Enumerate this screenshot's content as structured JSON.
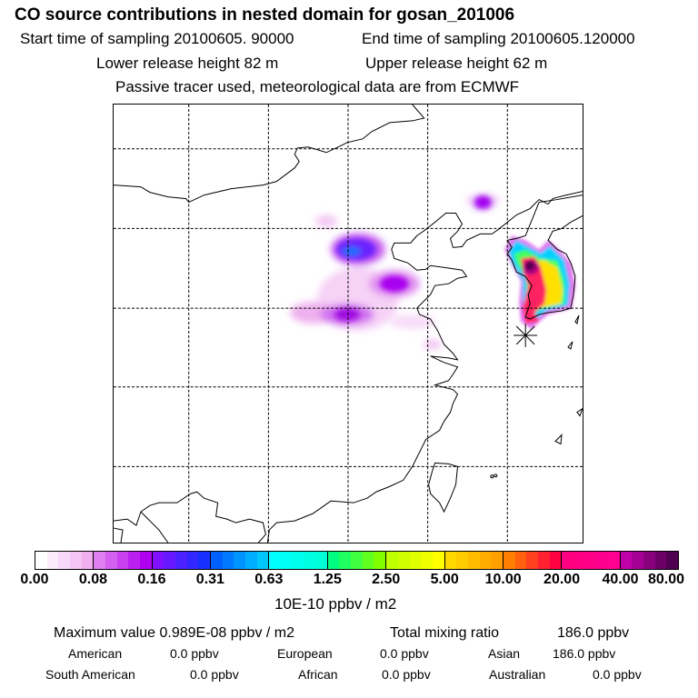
{
  "header": {
    "title": "CO  source contributions in nested domain for gosan_201006",
    "start_label": "Start time of sampling 20100605. 90000",
    "end_label": "End time of sampling 20100605.120000",
    "lower_label": "Lower release height   82 m",
    "upper_label": "Upper release height   62 m",
    "note": "Passive tracer used, meteorological data are from ECMWF"
  },
  "colorbar": {
    "ticks": [
      "0.00",
      "0.08",
      "0.16",
      "0.31",
      "0.63",
      "1.25",
      "2.50",
      "5.00",
      "10.00",
      "20.00",
      "40.00",
      "80.00"
    ],
    "unit": "10E-10 ppbv / m2",
    "segments": [
      [
        "#ffffff",
        "#f0b0f0"
      ],
      [
        "#e080f0",
        "#b000f0"
      ],
      [
        "#8010ff",
        "#1830ff"
      ],
      [
        "#0060ff",
        "#00c8ff"
      ],
      [
        "#00ffff",
        "#00ffd8"
      ],
      [
        "#00ff80",
        "#80ff00"
      ],
      [
        "#c0ff00",
        "#ffff00"
      ],
      [
        "#ffd800",
        "#ffa000"
      ],
      [
        "#ff8000",
        "#ff0040"
      ],
      [
        "#ff0080",
        "#ff0090"
      ],
      [
        "#c000a8",
        "#500050"
      ]
    ]
  },
  "summary": {
    "max_label": "Maximum value  0.989E-08 ppbv / m2",
    "total_label": "Total mixing ratio",
    "total_value": "186.0 ppbv",
    "regions": [
      {
        "name": "American",
        "value": "0.0 ppbv"
      },
      {
        "name": "European",
        "value": "0.0 ppbv"
      },
      {
        "name": "Asian",
        "value": "186.0 ppbv"
      },
      {
        "name": "South American",
        "value": "0.0 ppbv"
      },
      {
        "name": "African",
        "value": "0.0 ppbv"
      },
      {
        "name": "Australian",
        "value": "0.0 ppbv"
      }
    ]
  }
}
